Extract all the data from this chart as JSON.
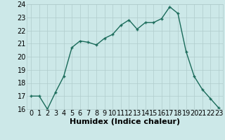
{
  "x": [
    0,
    1,
    2,
    3,
    4,
    5,
    6,
    7,
    8,
    9,
    10,
    11,
    12,
    13,
    14,
    15,
    16,
    17,
    18,
    19,
    20,
    21,
    22,
    23
  ],
  "y": [
    17.0,
    17.0,
    16.0,
    17.3,
    18.5,
    20.7,
    21.2,
    21.1,
    20.9,
    21.4,
    21.7,
    22.4,
    22.8,
    22.1,
    22.6,
    22.6,
    22.9,
    23.8,
    23.3,
    20.4,
    18.5,
    17.5,
    16.8,
    16.1
  ],
  "xlabel": "Humidex (Indice chaleur)",
  "ylim": [
    16,
    24
  ],
  "xlim": [
    -0.5,
    23.5
  ],
  "yticks": [
    16,
    17,
    18,
    19,
    20,
    21,
    22,
    23,
    24
  ],
  "xticks": [
    0,
    1,
    2,
    3,
    4,
    5,
    6,
    7,
    8,
    9,
    10,
    11,
    12,
    13,
    14,
    15,
    16,
    17,
    18,
    19,
    20,
    21,
    22,
    23
  ],
  "bg_color": "#cce8e8",
  "grid_color": "#b0cccc",
  "line_color": "#1a6b5a",
  "marker_color": "#1a6b5a",
  "xlabel_fontsize": 8,
  "tick_fontsize": 7
}
